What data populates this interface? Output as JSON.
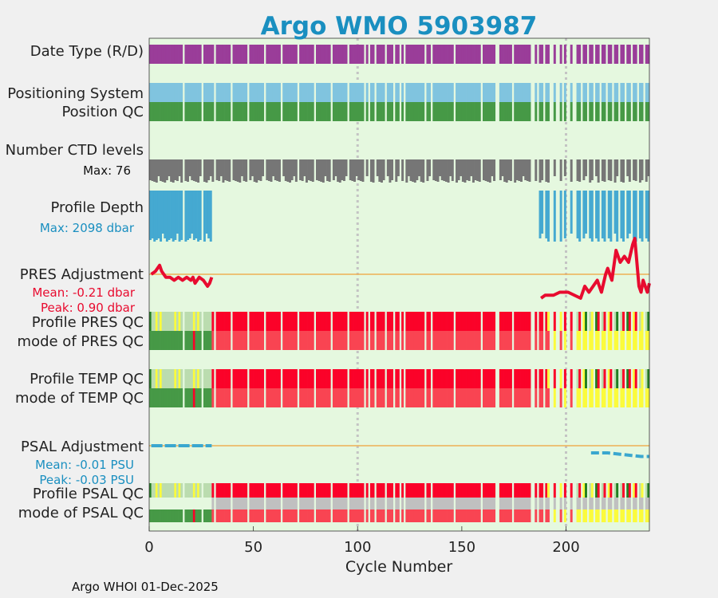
{
  "title": "Argo WMO 5903987",
  "footer": "Argo WHOI 01-Dec-2025",
  "colors": {
    "bg": "#e5f8df",
    "title": "#1a8fc0",
    "date": "#9a3d99",
    "pos": "#80c4df",
    "posqc": "#469946",
    "ctd": "#767676",
    "depth": "#45a9d1",
    "adj": "#e80b2f",
    "ref": "#efb055",
    "red": "#fb0229",
    "lred": "#f94452",
    "lgreen": "#bbdcaf",
    "yellow": "#fbfb3b",
    "dgreen": "#217f21",
    "grey": "#c0c0c0",
    "sal": "#3aa7cf"
  },
  "chart_data": {
    "type": "table",
    "title": "Argo WMO 5903987",
    "xlabel": "Cycle Number",
    "xlim": [
      0,
      240
    ],
    "xticks": [
      0,
      50,
      100,
      150,
      200
    ],
    "reference_lines_x": [
      100,
      200
    ],
    "tracks": {
      "date_type": "Date Type (R/D)",
      "positioning": "Positioning System",
      "position_qc": "Position QC",
      "ctd_levels": "Number CTD levels",
      "ctd_max": "Max: 76",
      "profile_depth": "Profile Depth",
      "depth_max": "Max: 2098 dbar",
      "pres_adjustment": "PRES Adjustment",
      "pres_mean": "Mean: -0.21 dbar",
      "pres_peak": "Peak: 0.90 dbar",
      "profile_pres_qc": "Profile PRES QC",
      "mode_pres_qc": "mode of PRES QC",
      "profile_temp_qc": "Profile TEMP QC",
      "mode_temp_qc": "mode of TEMP QC",
      "psal_adjustment": "PSAL Adjustment",
      "psal_mean": "Mean: -0.01 PSU",
      "psal_peak": "Peak: -0.03 PSU",
      "profile_psal_qc": "Profile PSAL QC",
      "mode_psal_qc": "mode of PSAL QC"
    },
    "missing_cycles": [
      17,
      26,
      40,
      104,
      106,
      109,
      114,
      118,
      121,
      123,
      133,
      147,
      160,
      167,
      175,
      185,
      190,
      194,
      197,
      201,
      204
    ],
    "dense_cycles": [
      102,
      103,
      110,
      111,
      112,
      113,
      115,
      116,
      117,
      120,
      126,
      127,
      128,
      142,
      143,
      144,
      152,
      153,
      161,
      162,
      170,
      171,
      176,
      177,
      178,
      179,
      180,
      186,
      187,
      188,
      189
    ],
    "ctd_levels_range": [
      70,
      76
    ],
    "pres_adjustment_dbar": {
      "early": [
        [
          1,
          0.0
        ],
        [
          3,
          0.05
        ],
        [
          5,
          0.15
        ],
        [
          6,
          0.05
        ],
        [
          8,
          -0.05
        ],
        [
          10,
          -0.05
        ],
        [
          12,
          -0.1
        ],
        [
          14,
          -0.05
        ],
        [
          16,
          -0.1
        ],
        [
          18,
          -0.05
        ],
        [
          20,
          -0.1
        ],
        [
          21,
          -0.05
        ],
        [
          22,
          -0.15
        ],
        [
          24,
          -0.05
        ],
        [
          26,
          -0.1
        ],
        [
          28,
          -0.2
        ],
        [
          29,
          -0.15
        ],
        [
          30,
          -0.05
        ]
      ],
      "late": [
        [
          188,
          -0.4
        ],
        [
          190,
          -0.35
        ],
        [
          194,
          -0.35
        ],
        [
          197,
          -0.3
        ],
        [
          201,
          -0.3
        ],
        [
          207,
          -0.4
        ],
        [
          209,
          -0.2
        ],
        [
          211,
          -0.3
        ],
        [
          213,
          -0.2
        ],
        [
          215,
          -0.1
        ],
        [
          217,
          -0.3
        ],
        [
          219,
          0.0
        ],
        [
          220,
          0.1
        ],
        [
          222,
          -0.1
        ],
        [
          224,
          0.4
        ],
        [
          226,
          0.2
        ],
        [
          228,
          0.3
        ],
        [
          230,
          0.2
        ],
        [
          232,
          0.5
        ],
        [
          233,
          0.6
        ],
        [
          234,
          0.2
        ],
        [
          235,
          -0.2
        ],
        [
          236,
          -0.3
        ],
        [
          237,
          -0.1
        ],
        [
          238,
          -0.2
        ],
        [
          239,
          -0.3
        ],
        [
          240,
          -0.15
        ]
      ]
    },
    "psal_adjustment_psu": {
      "early": [
        [
          1,
          0.0
        ],
        [
          10,
          0.0
        ],
        [
          20,
          0.0
        ],
        [
          30,
          0.0
        ]
      ],
      "late": [
        [
          212,
          -0.02
        ],
        [
          220,
          -0.02
        ],
        [
          228,
          -0.025
        ],
        [
          236,
          -0.03
        ],
        [
          240,
          -0.03
        ]
      ]
    }
  }
}
